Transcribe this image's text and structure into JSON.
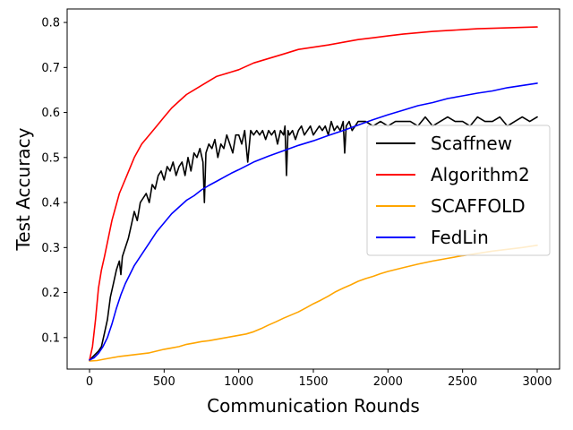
{
  "chart_data": {
    "type": "line",
    "xlabel": "Communication Rounds",
    "ylabel": "Test Accuracy",
    "xlim": [
      -150,
      3150
    ],
    "ylim": [
      0.03,
      0.83
    ],
    "x_ticks": [
      0,
      500,
      1000,
      1500,
      2000,
      2500,
      3000
    ],
    "y_ticks": [
      0.1,
      0.2,
      0.3,
      0.4,
      0.5,
      0.6,
      0.7,
      0.8
    ],
    "x_tick_labels": [
      "0",
      "500",
      "1000",
      "1500",
      "2000",
      "2500",
      "3000"
    ],
    "y_tick_labels": [
      "0.1",
      "0.2",
      "0.3",
      "0.4",
      "0.5",
      "0.6",
      "0.7",
      "0.8"
    ],
    "grid": false,
    "legend": {
      "position": "center-right"
    },
    "series": [
      {
        "name": "Scaffnew",
        "color": "#000000",
        "x": [
          0,
          30,
          60,
          80,
          100,
          120,
          140,
          160,
          180,
          200,
          210,
          220,
          240,
          260,
          280,
          300,
          320,
          340,
          360,
          380,
          400,
          420,
          440,
          460,
          480,
          500,
          520,
          540,
          560,
          580,
          600,
          620,
          640,
          660,
          680,
          700,
          720,
          740,
          760,
          770,
          780,
          800,
          820,
          840,
          860,
          880,
          900,
          920,
          940,
          960,
          980,
          1000,
          1020,
          1040,
          1060,
          1080,
          1100,
          1120,
          1140,
          1160,
          1180,
          1200,
          1220,
          1240,
          1260,
          1280,
          1300,
          1310,
          1320,
          1330,
          1340,
          1360,
          1380,
          1400,
          1420,
          1440,
          1460,
          1480,
          1500,
          1520,
          1540,
          1560,
          1580,
          1600,
          1620,
          1640,
          1660,
          1680,
          1700,
          1710,
          1720,
          1740,
          1760,
          1780,
          1800,
          1850,
          1900,
          1950,
          2000,
          2050,
          2100,
          2150,
          2200,
          2250,
          2300,
          2350,
          2400,
          2450,
          2500,
          2550,
          2600,
          2650,
          2700,
          2750,
          2800,
          2850,
          2900,
          2950,
          3000
        ],
        "values": [
          0.05,
          0.06,
          0.07,
          0.08,
          0.11,
          0.14,
          0.19,
          0.22,
          0.25,
          0.27,
          0.24,
          0.28,
          0.3,
          0.32,
          0.35,
          0.38,
          0.36,
          0.4,
          0.41,
          0.42,
          0.4,
          0.44,
          0.43,
          0.46,
          0.47,
          0.45,
          0.48,
          0.47,
          0.49,
          0.46,
          0.48,
          0.49,
          0.46,
          0.5,
          0.47,
          0.51,
          0.5,
          0.52,
          0.49,
          0.4,
          0.51,
          0.53,
          0.52,
          0.54,
          0.5,
          0.53,
          0.52,
          0.55,
          0.53,
          0.51,
          0.55,
          0.55,
          0.53,
          0.56,
          0.49,
          0.56,
          0.55,
          0.56,
          0.55,
          0.56,
          0.54,
          0.56,
          0.55,
          0.56,
          0.53,
          0.56,
          0.55,
          0.57,
          0.46,
          0.56,
          0.55,
          0.56,
          0.54,
          0.56,
          0.57,
          0.55,
          0.56,
          0.57,
          0.55,
          0.56,
          0.57,
          0.56,
          0.57,
          0.55,
          0.58,
          0.56,
          0.57,
          0.56,
          0.58,
          0.51,
          0.57,
          0.58,
          0.56,
          0.57,
          0.58,
          0.58,
          0.57,
          0.58,
          0.57,
          0.58,
          0.58,
          0.58,
          0.57,
          0.59,
          0.57,
          0.58,
          0.59,
          0.58,
          0.58,
          0.57,
          0.59,
          0.58,
          0.58,
          0.59,
          0.57,
          0.58,
          0.59,
          0.58,
          0.59
        ]
      },
      {
        "name": "Algorithm2",
        "color": "#ff0000",
        "x": [
          0,
          20,
          40,
          60,
          80,
          100,
          150,
          200,
          250,
          300,
          350,
          400,
          450,
          500,
          550,
          600,
          650,
          700,
          750,
          800,
          850,
          900,
          950,
          1000,
          1100,
          1200,
          1300,
          1400,
          1500,
          1600,
          1700,
          1800,
          1900,
          2000,
          2100,
          2200,
          2300,
          2400,
          2500,
          2600,
          2700,
          2800,
          2900,
          3000
        ],
        "values": [
          0.05,
          0.08,
          0.14,
          0.21,
          0.25,
          0.28,
          0.36,
          0.42,
          0.46,
          0.5,
          0.53,
          0.55,
          0.57,
          0.59,
          0.61,
          0.625,
          0.64,
          0.65,
          0.66,
          0.67,
          0.68,
          0.685,
          0.69,
          0.695,
          0.71,
          0.72,
          0.73,
          0.74,
          0.745,
          0.75,
          0.756,
          0.762,
          0.766,
          0.77,
          0.774,
          0.777,
          0.78,
          0.782,
          0.784,
          0.786,
          0.787,
          0.788,
          0.789,
          0.79
        ]
      },
      {
        "name": "SCAFFOLD",
        "color": "#ffa500",
        "x": [
          0,
          50,
          100,
          150,
          200,
          250,
          300,
          350,
          400,
          450,
          500,
          550,
          600,
          650,
          700,
          750,
          800,
          850,
          900,
          950,
          1000,
          1050,
          1100,
          1150,
          1200,
          1250,
          1300,
          1350,
          1400,
          1450,
          1500,
          1550,
          1600,
          1650,
          1700,
          1750,
          1800,
          1850,
          1900,
          1950,
          2000,
          2100,
          2200,
          2300,
          2400,
          2500,
          2600,
          2700,
          2800,
          2900,
          3000
        ],
        "values": [
          0.048,
          0.049,
          0.052,
          0.055,
          0.058,
          0.06,
          0.062,
          0.064,
          0.066,
          0.07,
          0.074,
          0.077,
          0.08,
          0.085,
          0.088,
          0.091,
          0.093,
          0.096,
          0.099,
          0.102,
          0.105,
          0.108,
          0.113,
          0.12,
          0.128,
          0.135,
          0.143,
          0.15,
          0.157,
          0.166,
          0.175,
          0.183,
          0.192,
          0.202,
          0.21,
          0.217,
          0.225,
          0.231,
          0.236,
          0.242,
          0.247,
          0.255,
          0.263,
          0.27,
          0.276,
          0.282,
          0.287,
          0.292,
          0.296,
          0.3,
          0.305
        ]
      },
      {
        "name": "FedLin",
        "color": "#0000ff",
        "x": [
          0,
          30,
          60,
          90,
          120,
          150,
          180,
          210,
          240,
          270,
          300,
          350,
          400,
          450,
          500,
          550,
          600,
          650,
          700,
          750,
          800,
          850,
          900,
          950,
          1000,
          1100,
          1200,
          1300,
          1400,
          1500,
          1600,
          1700,
          1800,
          1900,
          2000,
          2100,
          2200,
          2300,
          2400,
          2500,
          2600,
          2700,
          2800,
          2900,
          3000
        ],
        "values": [
          0.05,
          0.055,
          0.065,
          0.08,
          0.1,
          0.13,
          0.165,
          0.195,
          0.22,
          0.24,
          0.26,
          0.285,
          0.31,
          0.335,
          0.355,
          0.375,
          0.39,
          0.405,
          0.415,
          0.428,
          0.438,
          0.447,
          0.456,
          0.465,
          0.473,
          0.49,
          0.503,
          0.515,
          0.527,
          0.537,
          0.549,
          0.56,
          0.572,
          0.584,
          0.595,
          0.605,
          0.615,
          0.622,
          0.631,
          0.637,
          0.643,
          0.648,
          0.655,
          0.66,
          0.665
        ]
      }
    ]
  }
}
